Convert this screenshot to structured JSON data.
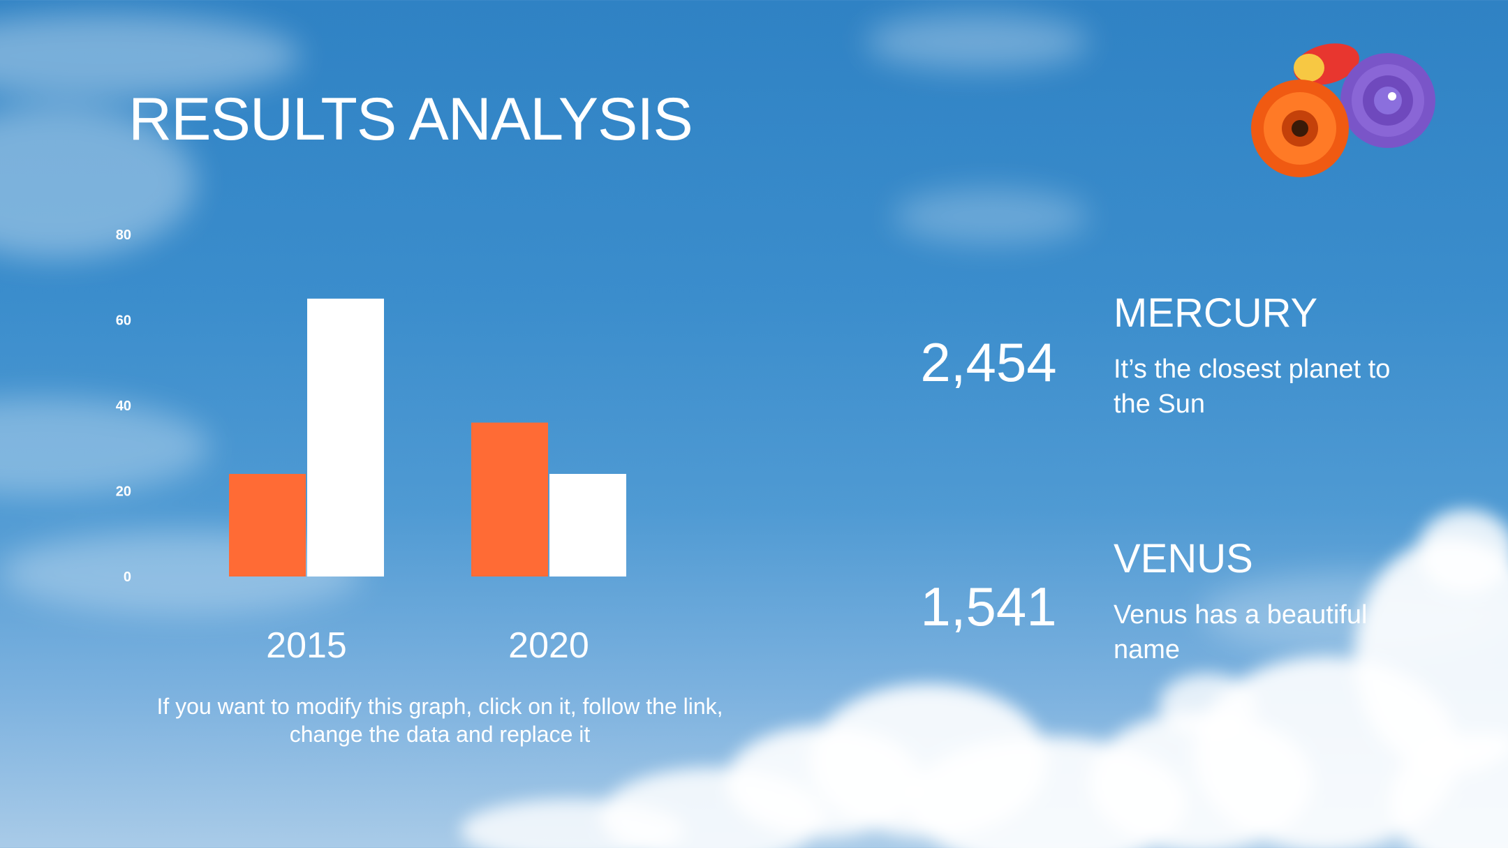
{
  "slide": {
    "title": "RESULTS ANALYSIS",
    "chart_note": "If you want to modify this graph, click on it, follow the link, change the data and replace it"
  },
  "colors": {
    "accent": "#ff6b35",
    "secondary": "#ffffff",
    "sky": "#3b8dcc"
  },
  "chart_data": {
    "type": "bar",
    "categories": [
      "2015",
      "2020"
    ],
    "series": [
      {
        "values": [
          24,
          36
        ],
        "color": "#ff6b35"
      },
      {
        "values": [
          65,
          24
        ],
        "color": "#ffffff"
      }
    ],
    "yticks": [
      "0",
      "20",
      "40",
      "60",
      "80"
    ],
    "ylim": [
      0,
      80
    ],
    "grid": false,
    "legend": "none"
  },
  "stats": [
    {
      "value": "2,454",
      "name": "MERCURY",
      "description": "It’s the closest planet to the Sun"
    },
    {
      "value": "1,541",
      "name": "VENUS",
      "description": "Venus has a beautiful name"
    }
  ],
  "decorations": {
    "icon": "flowers-icon"
  }
}
